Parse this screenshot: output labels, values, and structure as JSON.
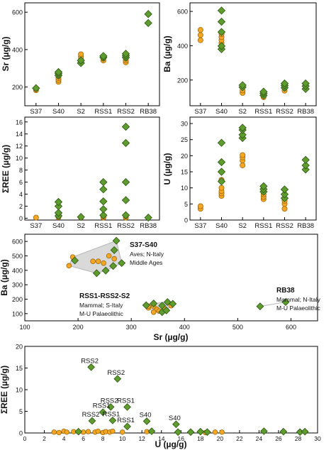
{
  "colors": {
    "orange": "#F5A623",
    "orange_edge": "#9a6a10",
    "green": "#5E9C2E",
    "green_edge": "#2f5416",
    "hull": "#c9c9c9"
  },
  "markers": {
    "orange": "circle",
    "green": "diamond"
  },
  "chart_data": [
    {
      "id": "sr",
      "type": "scatter",
      "ylabel": "Sr (µg/g)",
      "categories": [
        "S37",
        "S40",
        "S2",
        "RSS1",
        "RSS2",
        "RB38"
      ],
      "yticks": [
        200,
        400,
        600
      ],
      "ylim": [
        100,
        650
      ],
      "series": [
        {
          "color": "orange",
          "points": [
            [
              0,
              183
            ],
            [
              0,
              190
            ],
            [
              1,
              228
            ],
            [
              1,
              238
            ],
            [
              1,
              248
            ],
            [
              1,
              258
            ],
            [
              2,
              332
            ],
            [
              2,
              348
            ],
            [
              2,
              362
            ],
            [
              2,
              375
            ],
            [
              3,
              342
            ],
            [
              3,
              352
            ],
            [
              4,
              332
            ],
            [
              4,
              342
            ],
            [
              4,
              352
            ]
          ]
        },
        {
          "color": "green",
          "points": [
            [
              0,
              194
            ],
            [
              1,
              262
            ],
            [
              1,
              272
            ],
            [
              1,
              280
            ],
            [
              2,
              328
            ],
            [
              2,
              342
            ],
            [
              3,
              358
            ],
            [
              3,
              366
            ],
            [
              4,
              358
            ],
            [
              4,
              368
            ],
            [
              4,
              378
            ],
            [
              5,
              542
            ],
            [
              5,
              590
            ]
          ]
        }
      ]
    },
    {
      "id": "ba",
      "type": "scatter",
      "ylabel": "Ba (µg/g)",
      "categories": [
        "S37",
        "S40",
        "S2",
        "RSS1",
        "RSS2",
        "RB38"
      ],
      "yticks": [
        200,
        400,
        600
      ],
      "ylim": [
        50,
        650
      ],
      "series": [
        {
          "color": "orange",
          "points": [
            [
              0,
              432
            ],
            [
              0,
              462
            ],
            [
              0,
              492
            ],
            [
              1,
              415
            ],
            [
              1,
              432
            ],
            [
              1,
              450
            ],
            [
              1,
              468
            ],
            [
              2,
              125
            ],
            [
              2,
              140
            ],
            [
              3,
              100
            ],
            [
              3,
              112
            ],
            [
              4,
              138
            ],
            [
              4,
              152
            ]
          ]
        },
        {
          "color": "green",
          "points": [
            [
              1,
              380
            ],
            [
              1,
              398
            ],
            [
              1,
              480
            ],
            [
              1,
              540
            ],
            [
              1,
              605
            ],
            [
              2,
              158
            ],
            [
              2,
              170
            ],
            [
              3,
              110
            ],
            [
              3,
              122
            ],
            [
              3,
              132
            ],
            [
              4,
              155
            ],
            [
              4,
              168
            ],
            [
              4,
              180
            ],
            [
              5,
              148
            ],
            [
              5,
              165
            ],
            [
              5,
              180
            ]
          ]
        }
      ]
    },
    {
      "id": "ree",
      "type": "scatter",
      "ylabel": "ΣREE (µg/g)",
      "categories": [
        "S37",
        "S40",
        "S2",
        "RSS1",
        "RSS2",
        "RB38"
      ],
      "yticks": [
        0,
        2,
        4,
        6,
        8,
        10,
        12,
        14,
        16
      ],
      "ylim": [
        -0.3,
        16.8
      ],
      "series": [
        {
          "color": "orange",
          "points": [
            [
              0,
              0.1
            ],
            [
              1,
              0.15
            ],
            [
              1,
              0.3
            ],
            [
              2,
              0.1
            ],
            [
              3,
              0.1
            ],
            [
              3,
              0.25
            ],
            [
              4,
              0.1
            ],
            [
              4,
              0.3
            ]
          ]
        },
        {
          "color": "green",
          "points": [
            [
              1,
              0.4
            ],
            [
              1,
              0.9
            ],
            [
              1,
              2.0
            ],
            [
              1,
              2.7
            ],
            [
              2,
              0.2
            ],
            [
              3,
              0.5
            ],
            [
              3,
              1.5
            ],
            [
              3,
              2.8
            ],
            [
              3,
              4.8
            ],
            [
              3,
              6.0
            ],
            [
              4,
              0.5
            ],
            [
              4,
              3.0
            ],
            [
              4,
              6.0
            ],
            [
              4,
              12.5
            ],
            [
              4,
              15.2
            ],
            [
              5,
              0.1
            ]
          ]
        }
      ]
    },
    {
      "id": "u",
      "type": "scatter",
      "ylabel": "U (µg/g)",
      "categories": [
        "S37",
        "S40",
        "S2",
        "RSS1",
        "RSS2",
        "RB38"
      ],
      "yticks": [
        0,
        5,
        10,
        15,
        20,
        25,
        30
      ],
      "ylim": [
        0,
        32
      ],
      "series": [
        {
          "color": "orange",
          "points": [
            [
              0,
              3.5
            ],
            [
              0,
              4.3
            ],
            [
              1,
              7.5
            ],
            [
              1,
              8.3
            ],
            [
              1,
              9.0
            ],
            [
              1,
              10.0
            ],
            [
              1,
              12.5
            ],
            [
              2,
              17.0
            ],
            [
              2,
              18.5
            ],
            [
              2,
              19.5
            ],
            [
              2,
              20.2
            ],
            [
              3,
              6.5
            ],
            [
              3,
              7.2
            ],
            [
              3,
              8.0
            ],
            [
              3,
              8.7
            ],
            [
              4,
              3.5
            ],
            [
              4,
              5.0
            ],
            [
              4,
              6.0
            ]
          ]
        },
        {
          "color": "green",
          "points": [
            [
              1,
              12.0
            ],
            [
              1,
              15.0
            ],
            [
              1,
              18.0
            ],
            [
              1,
              24.0
            ],
            [
              2,
              25.5
            ],
            [
              2,
              26.5
            ],
            [
              2,
              28.0
            ],
            [
              2,
              28.7
            ],
            [
              3,
              8.8
            ],
            [
              3,
              9.6
            ],
            [
              3,
              10.5
            ],
            [
              4,
              6.8
            ],
            [
              4,
              8.0
            ],
            [
              4,
              9.5
            ],
            [
              5,
              15.7
            ],
            [
              5,
              17.0
            ],
            [
              5,
              18.7
            ]
          ]
        }
      ]
    },
    {
      "id": "sr_ba",
      "type": "scatter",
      "xlabel": "Sr (µg/g)",
      "ylabel": "Ba (µg/g)",
      "xlim": [
        100,
        650
      ],
      "ylim": [
        50,
        650
      ],
      "xticks": [
        100,
        200,
        300,
        400,
        500,
        600
      ],
      "yticks": [
        100,
        200,
        300,
        400,
        500,
        600
      ],
      "series": [
        {
          "color": "orange",
          "points": [
            [
              183,
              432
            ],
            [
              190,
              492
            ],
            [
              228,
              462
            ],
            [
              238,
              462
            ],
            [
              248,
              450
            ],
            [
              258,
              500
            ],
            [
              268,
              480
            ],
            [
              332,
              140
            ],
            [
              348,
              130
            ],
            [
              362,
              135
            ],
            [
              375,
              155
            ],
            [
              342,
              110
            ],
            [
              352,
              118
            ],
            [
              332,
              152
            ],
            [
              342,
              150
            ]
          ]
        },
        {
          "color": "green",
          "points": [
            [
              194,
              468
            ],
            [
              235,
              380
            ],
            [
              252,
              398
            ],
            [
              266,
              430
            ],
            [
              268,
              540
            ],
            [
              272,
              605
            ],
            [
              282,
              450
            ],
            [
              328,
              158
            ],
            [
              342,
              170
            ],
            [
              358,
              110
            ],
            [
              366,
              122
            ],
            [
              358,
              155
            ],
            [
              368,
              180
            ],
            [
              378,
              168
            ],
            [
              542,
              150
            ],
            [
              590,
              180
            ]
          ]
        }
      ],
      "groups": [
        {
          "title": "S37-S40",
          "lines": [
            "Aves; N-Italy",
            "Middle Ages"
          ]
        },
        {
          "title": "RSS1-RSS2-S2",
          "lines": [
            "Mammal; S-Italy",
            "M-U Palaeolithic"
          ]
        },
        {
          "title": "RB38",
          "lines": [
            "Mammal; N-Italy",
            "M-U Palaeolithic"
          ]
        }
      ]
    },
    {
      "id": "u_ree",
      "type": "scatter",
      "xlabel": "U (µg/g)",
      "ylabel": "ΣREE (µg/g)",
      "xlim": [
        0,
        30
      ],
      "ylim": [
        0,
        20
      ],
      "xticks": [
        0,
        2,
        4,
        6,
        8,
        10,
        12,
        14,
        16,
        18,
        20,
        22,
        24,
        26,
        28,
        30
      ],
      "yticks": [
        0,
        5,
        10,
        15,
        20
      ],
      "series": [
        {
          "color": "orange",
          "points": [
            [
              3.0,
              0.2
            ],
            [
              3.5,
              0.1
            ],
            [
              4.0,
              0.4
            ],
            [
              4.3,
              0.2
            ],
            [
              5.0,
              0.3
            ],
            [
              6.0,
              0.2
            ],
            [
              6.5,
              0.3
            ],
            [
              7.2,
              0.2
            ],
            [
              7.5,
              0.4
            ],
            [
              8.0,
              0.1
            ],
            [
              8.3,
              0.3
            ],
            [
              8.7,
              0.2
            ],
            [
              9.0,
              0.4
            ],
            [
              10.0,
              0.2
            ],
            [
              12.5,
              0.3
            ],
            [
              17.0,
              0.2
            ],
            [
              18.5,
              0.1
            ],
            [
              19.5,
              0.2
            ],
            [
              20.2,
              0.2
            ]
          ]
        },
        {
          "color": "green",
          "points": [
            [
              6.8,
              15.2
            ],
            [
              9.5,
              12.5
            ],
            [
              8.8,
              6.0
            ],
            [
              10.5,
              6.0
            ],
            [
              8.0,
              4.8
            ],
            [
              9.0,
              2.9
            ],
            [
              6.9,
              2.8
            ],
            [
              10.5,
              1.5
            ],
            [
              12.5,
              2.7
            ],
            [
              15.5,
              2.0
            ],
            [
              5.5,
              0.3
            ],
            [
              13.0,
              0.4
            ],
            [
              15.7,
              0.2
            ],
            [
              17.0,
              0.2
            ],
            [
              18.0,
              0.3
            ],
            [
              18.7,
              0.2
            ],
            [
              24.5,
              0.4
            ],
            [
              26.5,
              0.3
            ],
            [
              28.2,
              0.2
            ],
            [
              28.7,
              0.3
            ]
          ]
        }
      ],
      "annotations": [
        {
          "text": "RSS2",
          "x": 6.8,
          "y": 15.2
        },
        {
          "text": "RSS2",
          "x": 9.5,
          "y": 12.5
        },
        {
          "text": "RSS2",
          "x": 8.8,
          "y": 6.0
        },
        {
          "text": "RSS1",
          "x": 10.5,
          "y": 6.0
        },
        {
          "text": "RSS1",
          "x": 8.0,
          "y": 4.8
        },
        {
          "text": "RSS2",
          "x": 6.9,
          "y": 2.8
        },
        {
          "text": "RSS1",
          "x": 9.0,
          "y": 2.9
        },
        {
          "text": "RSS1",
          "x": 10.5,
          "y": 1.5
        },
        {
          "text": "S40",
          "x": 12.5,
          "y": 2.7
        },
        {
          "text": "S40",
          "x": 15.5,
          "y": 2.0
        }
      ]
    }
  ]
}
